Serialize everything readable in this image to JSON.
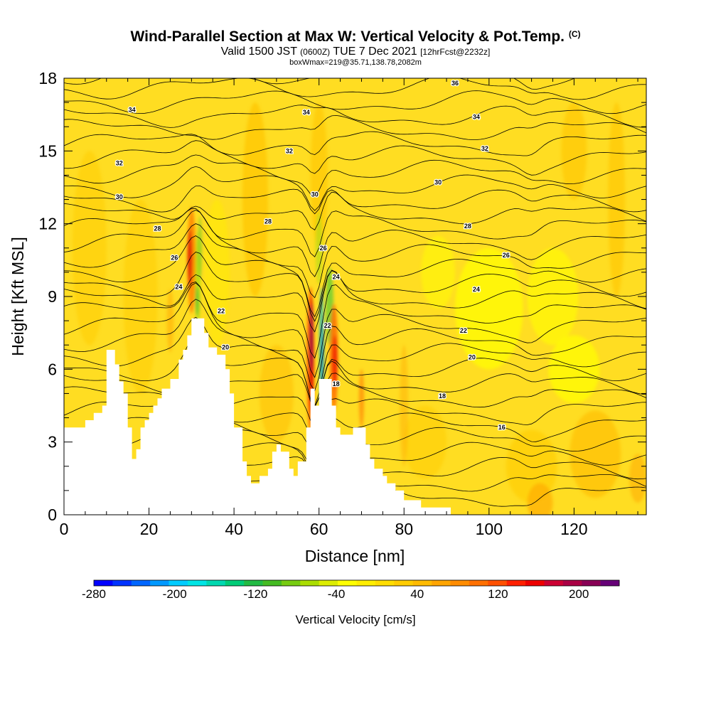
{
  "title": {
    "main": "Wind-Parallel Section at Max W: Vertical Velocity & Pot.Temp.",
    "copyright": "(C)",
    "valid_prefix": "Valid 1500 JST",
    "valid_utc": "(0600Z)",
    "valid_date": "TUE 7 Dec 2021",
    "forecast": "[12hrFcst@2232z]",
    "boxwmax": "boxWmax=219@35.71,138.78,2082m"
  },
  "chart_data": {
    "type": "heatmap",
    "xlabel": "Distance [nm]",
    "ylabel": "Height [Kft MSL]",
    "xlim": [
      0,
      137
    ],
    "ylim": [
      0,
      18
    ],
    "x_ticks": [
      "0",
      "20",
      "40",
      "60",
      "80",
      "100",
      "120"
    ],
    "y_ticks": [
      "0",
      "3",
      "6",
      "9",
      "12",
      "15",
      "18"
    ],
    "colorbar": {
      "label": "Vertical Velocity [cm/s]",
      "range": [
        -280,
        240
      ],
      "tick_labels": [
        "-280",
        "-200",
        "-120",
        "-40",
        "40",
        "120",
        "200"
      ],
      "colors": [
        "#0000ff",
        "#0033ff",
        "#0066ff",
        "#0099ff",
        "#00ccff",
        "#00e5e5",
        "#00d8b0",
        "#00cc77",
        "#22bb44",
        "#44bb22",
        "#77cc11",
        "#aadd00",
        "#dded00",
        "#ffff00",
        "#ffee00",
        "#ffdd00",
        "#ffcc00",
        "#ffbb00",
        "#ffa500",
        "#ff8c00",
        "#ff7000",
        "#ff5000",
        "#ff2000",
        "#ee0000",
        "#cc0033",
        "#aa0044",
        "#880055",
        "#660077"
      ]
    },
    "terrain": [
      [
        0,
        3.6
      ],
      [
        5,
        3.6
      ],
      [
        5,
        3.9
      ],
      [
        7,
        3.9
      ],
      [
        7,
        4.2
      ],
      [
        9,
        4.2
      ],
      [
        9,
        4.5
      ],
      [
        10,
        4.5
      ],
      [
        10,
        6.8
      ],
      [
        12,
        6.8
      ],
      [
        12,
        6.2
      ],
      [
        13,
        6.2
      ],
      [
        13,
        5.5
      ],
      [
        14,
        5.5
      ],
      [
        14,
        5.0
      ],
      [
        15,
        5.0
      ],
      [
        15,
        3.6
      ],
      [
        16,
        3.6
      ],
      [
        16,
        2.3
      ],
      [
        17,
        2.3
      ],
      [
        17,
        2.7
      ],
      [
        18,
        2.7
      ],
      [
        18,
        3.6
      ],
      [
        19,
        3.6
      ],
      [
        19,
        3.9
      ],
      [
        20,
        3.9
      ],
      [
        20,
        4.2
      ],
      [
        21,
        4.2
      ],
      [
        21,
        4.5
      ],
      [
        22,
        4.5
      ],
      [
        22,
        4.8
      ],
      [
        23,
        4.8
      ],
      [
        23,
        5.2
      ],
      [
        25,
        5.2
      ],
      [
        25,
        5.6
      ],
      [
        27,
        5.6
      ],
      [
        27,
        6.4
      ],
      [
        28,
        6.4
      ],
      [
        28,
        6.8
      ],
      [
        29,
        6.8
      ],
      [
        29,
        7.4
      ],
      [
        30,
        7.4
      ],
      [
        30,
        8.1
      ],
      [
        33,
        8.1
      ],
      [
        33,
        7.5
      ],
      [
        34,
        7.5
      ],
      [
        34,
        6.9
      ],
      [
        36,
        6.9
      ],
      [
        36,
        6.6
      ],
      [
        38,
        6.6
      ],
      [
        38,
        6.0
      ],
      [
        39,
        6.0
      ],
      [
        39,
        5.0
      ],
      [
        40,
        5.0
      ],
      [
        40,
        3.6
      ],
      [
        42,
        3.6
      ],
      [
        42,
        2.2
      ],
      [
        43,
        2.2
      ],
      [
        43,
        1.6
      ],
      [
        44,
        1.6
      ],
      [
        44,
        1.3
      ],
      [
        46,
        1.3
      ],
      [
        46,
        1.6
      ],
      [
        48,
        1.6
      ],
      [
        48,
        1.9
      ],
      [
        49,
        1.9
      ],
      [
        49,
        2.6
      ],
      [
        50,
        2.6
      ],
      [
        50,
        2.9
      ],
      [
        51,
        2.9
      ],
      [
        51,
        2.6
      ],
      [
        53,
        2.6
      ],
      [
        53,
        1.9
      ],
      [
        54,
        1.9
      ],
      [
        54,
        1.6
      ],
      [
        55,
        1.6
      ],
      [
        55,
        2.2
      ],
      [
        57,
        2.2
      ],
      [
        57,
        3.6
      ],
      [
        58,
        3.6
      ],
      [
        58,
        5.2
      ],
      [
        59,
        5.2
      ],
      [
        59,
        4.5
      ],
      [
        60,
        4.5
      ],
      [
        60,
        5.6
      ],
      [
        63,
        5.6
      ],
      [
        63,
        4.5
      ],
      [
        64,
        4.5
      ],
      [
        64,
        3.6
      ],
      [
        65,
        3.6
      ],
      [
        65,
        3.3
      ],
      [
        68,
        3.3
      ],
      [
        68,
        3.6
      ],
      [
        71,
        3.6
      ],
      [
        71,
        2.9
      ],
      [
        72,
        2.9
      ],
      [
        72,
        2.3
      ],
      [
        73,
        2.3
      ],
      [
        73,
        1.9
      ],
      [
        75,
        1.9
      ],
      [
        75,
        1.6
      ],
      [
        76,
        1.6
      ],
      [
        76,
        1.3
      ],
      [
        78,
        1.3
      ],
      [
        78,
        1.0
      ],
      [
        80,
        1.0
      ],
      [
        80,
        0.6
      ],
      [
        84,
        0.6
      ],
      [
        84,
        0.3
      ],
      [
        91,
        0.3
      ],
      [
        91,
        0.0
      ]
    ],
    "contour_labels": [
      {
        "text": "34",
        "x": 16,
        "y": 16.7
      },
      {
        "text": "34",
        "x": 57,
        "y": 16.6
      },
      {
        "text": "36",
        "x": 92,
        "y": 17.8
      },
      {
        "text": "34",
        "x": 97,
        "y": 16.4
      },
      {
        "text": "32",
        "x": 13,
        "y": 14.5
      },
      {
        "text": "32",
        "x": 53,
        "y": 15.0
      },
      {
        "text": "32",
        "x": 99,
        "y": 15.1
      },
      {
        "text": "30",
        "x": 13,
        "y": 13.1
      },
      {
        "text": "30",
        "x": 59,
        "y": 13.2
      },
      {
        "text": "30",
        "x": 88,
        "y": 13.7
      },
      {
        "text": "28",
        "x": 22,
        "y": 11.8
      },
      {
        "text": "28",
        "x": 48,
        "y": 12.1
      },
      {
        "text": "28",
        "x": 95,
        "y": 11.9
      },
      {
        "text": "26",
        "x": 26,
        "y": 10.6
      },
      {
        "text": "26",
        "x": 61,
        "y": 11.0
      },
      {
        "text": "26",
        "x": 104,
        "y": 10.7
      },
      {
        "text": "24",
        "x": 27,
        "y": 9.4
      },
      {
        "text": "24",
        "x": 64,
        "y": 9.8
      },
      {
        "text": "24",
        "x": 97,
        "y": 9.3
      },
      {
        "text": "22",
        "x": 37,
        "y": 8.4
      },
      {
        "text": "22",
        "x": 62,
        "y": 7.8
      },
      {
        "text": "22",
        "x": 94,
        "y": 7.6
      },
      {
        "text": "20",
        "x": 38,
        "y": 6.9
      },
      {
        "text": "20",
        "x": 96,
        "y": 6.5
      },
      {
        "text": "18",
        "x": 64,
        "y": 5.4
      },
      {
        "text": "18",
        "x": 89,
        "y": 4.9
      },
      {
        "text": "16",
        "x": 103,
        "y": 3.6
      }
    ]
  }
}
